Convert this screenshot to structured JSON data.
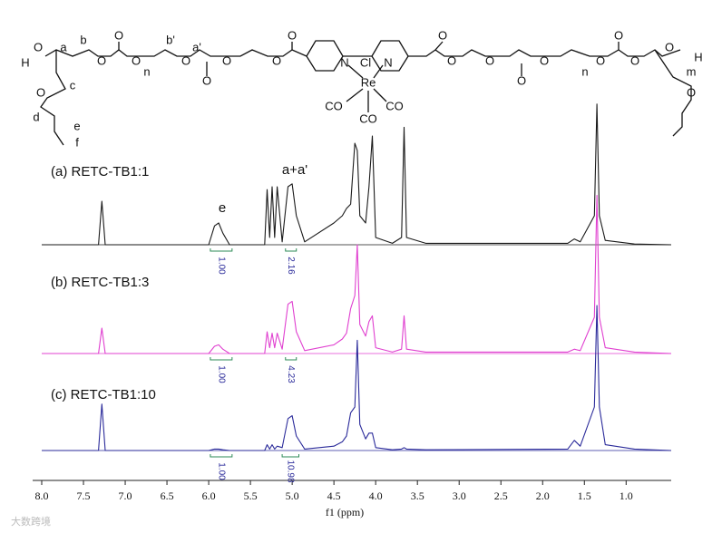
{
  "structure": {
    "labels": [
      "H",
      "O",
      "a",
      "b",
      "O",
      "O",
      "O",
      "n",
      "b'",
      "a'",
      "O",
      "O",
      "O",
      "O",
      "O",
      "N",
      "Cl",
      "Re",
      "N",
      "CO",
      "CO",
      "CO",
      "O",
      "O",
      "O",
      "O",
      "O",
      "n",
      "O",
      "O",
      "O",
      "O",
      "H",
      "m",
      "c",
      "O",
      "d",
      "e",
      "f",
      "O"
    ]
  },
  "watermark": "大数跨境",
  "chart_data": {
    "type": "line",
    "xlabel": "f1 (ppm)",
    "annotations": [
      "e",
      "a+a'"
    ],
    "xlim": [
      8.0,
      0.46
    ],
    "xticks": [
      {
        "value": 8,
        "label": "8.0"
      },
      7.5,
      {
        "value": 7,
        "label": "7.0"
      },
      6.5,
      {
        "value": 6,
        "label": "6.0"
      },
      5.5,
      {
        "value": 5,
        "label": "5.0"
      },
      4.5,
      {
        "value": 4,
        "label": "4.0"
      },
      3.5,
      {
        "value": 3,
        "label": "3.0"
      },
      2.5,
      {
        "value": 2,
        "label": "2.0"
      },
      1.5,
      {
        "value": 1,
        "label": "1.0"
      }
    ],
    "ylim": [
      0,
      100
    ],
    "x": [
      8.0,
      7.32,
      7.28,
      7.24,
      6.0,
      5.93,
      5.88,
      5.83,
      5.75,
      5.33,
      5.3,
      5.27,
      5.24,
      5.21,
      5.18,
      5.12,
      5.05,
      5.0,
      4.95,
      4.85,
      4.5,
      4.4,
      4.35,
      4.3,
      4.25,
      4.22,
      4.19,
      4.12,
      4.08,
      4.04,
      4.0,
      3.8,
      3.69,
      3.66,
      3.63,
      3.4,
      1.7,
      1.62,
      1.55,
      1.38,
      1.35,
      1.32,
      1.25,
      0.9,
      0.46
    ],
    "series": [
      {
        "name": "(a) RETC-TB1:1",
        "color": "#1a1a1a",
        "values": [
          0,
          0,
          30,
          0,
          0,
          13,
          15,
          8,
          0,
          0,
          38,
          5,
          40,
          5,
          40,
          2,
          40,
          42,
          20,
          2,
          15,
          20,
          25,
          28,
          70,
          65,
          20,
          15,
          40,
          75,
          5,
          1,
          5,
          81,
          5,
          1,
          1,
          4,
          2,
          20,
          97,
          20,
          3,
          0.5,
          0
        ],
        "integrals": [
          {
            "value": 1,
            "label": "1.00",
            "from": 5.98,
            "to": 5.72
          },
          {
            "value": 2.16,
            "label": "2.16",
            "from": 5.08,
            "to": 4.95
          }
        ]
      },
      {
        "name": "(b) RETC-TB1:3",
        "color": "#e040d0",
        "values": [
          0,
          0,
          17.5,
          0,
          0,
          5,
          6,
          3,
          0,
          0,
          15,
          4,
          14,
          4,
          14,
          3,
          34,
          36,
          15,
          2,
          6,
          10,
          14,
          31,
          40,
          75,
          20,
          12,
          22,
          26,
          4,
          1,
          3,
          26,
          3,
          1,
          1,
          3,
          2,
          25,
          109,
          25,
          4,
          1,
          0
        ],
        "integrals": [
          {
            "value": 1,
            "label": "1.00",
            "from": 5.98,
            "to": 5.72
          },
          {
            "value": 4.23,
            "label": "4.23",
            "from": 5.08,
            "to": 4.95
          }
        ]
      },
      {
        "name": "(c) RETC-TB1:10",
        "color": "#2a2a9a",
        "values": [
          0,
          0,
          32,
          0,
          0,
          1,
          1,
          0.5,
          0,
          0,
          4,
          1,
          4,
          1,
          3,
          2,
          22,
          24,
          10,
          1,
          3,
          6,
          10,
          26,
          30,
          76,
          18,
          8,
          12,
          12,
          2,
          0.5,
          1,
          2,
          1,
          0.5,
          1,
          7,
          3,
          30,
          100,
          30,
          4,
          1,
          0
        ],
        "integrals": [
          {
            "value": 1,
            "label": "1.00",
            "from": 5.98,
            "to": 5.72
          },
          {
            "value": 10.98,
            "label": "10.98",
            "from": 5.12,
            "to": 4.92
          }
        ]
      }
    ]
  }
}
